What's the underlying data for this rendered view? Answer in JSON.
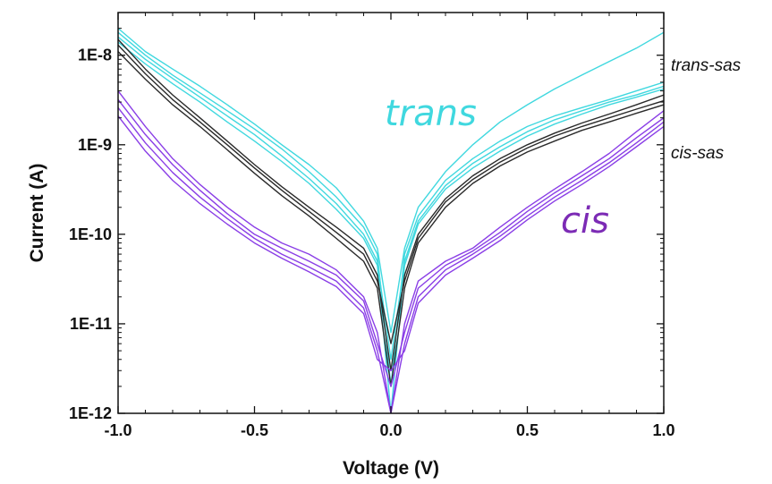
{
  "chart_data": {
    "type": "line",
    "xlabel": "Voltage (V)",
    "ylabel": "Current (A)",
    "xlim": [
      -1.0,
      1.0
    ],
    "ylim": [
      1e-12,
      3e-08
    ],
    "yscale": "log",
    "grid": false,
    "x_ticks": [
      -1.0,
      -0.5,
      0.0,
      0.5,
      1.0
    ],
    "x_tick_labels": [
      "-1.0",
      "-0.5",
      "0.0",
      "0.5",
      "1.0"
    ],
    "y_ticks": [
      1e-12,
      1e-11,
      1e-10,
      1e-09,
      1e-08
    ],
    "y_tick_labels": [
      "1E-12",
      "1E-11",
      "1E-10",
      "1E-9",
      "1E-8"
    ],
    "colors": {
      "trans": "#40d8df",
      "trans_sas": "#2a2a2a",
      "cis": "#8a3ee6",
      "cis_label": "#7c2bb5"
    },
    "annotations": [
      {
        "text": "trans",
        "group": "trans"
      },
      {
        "text": "cis",
        "group": "cis"
      },
      {
        "text": "trans-sas",
        "group": "label"
      },
      {
        "text": "cis-sas",
        "group": "label"
      }
    ],
    "series": [
      {
        "group": "trans",
        "x": [
          -1.0,
          -0.9,
          -0.8,
          -0.7,
          -0.6,
          -0.5,
          -0.4,
          -0.3,
          -0.2,
          -0.1,
          -0.05,
          0.0,
          0.05,
          0.1,
          0.2,
          0.3,
          0.4,
          0.5,
          0.6,
          0.7,
          0.8,
          0.9,
          1.0
        ],
        "y": [
          2e-08,
          1.1e-08,
          7e-09,
          4.5e-09,
          2.8e-09,
          1.7e-09,
          1e-09,
          6e-10,
          3.3e-10,
          1.4e-10,
          7e-11,
          8e-12,
          7e-11,
          2e-10,
          5e-10,
          1e-09,
          1.8e-09,
          2.8e-09,
          4.2e-09,
          6e-09,
          8.5e-09,
          1.2e-08,
          1.8e-08
        ]
      },
      {
        "group": "trans",
        "x": [
          -1.0,
          -0.9,
          -0.8,
          -0.7,
          -0.6,
          -0.5,
          -0.4,
          -0.3,
          -0.2,
          -0.1,
          -0.05,
          0.0,
          0.05,
          0.1,
          0.2,
          0.3,
          0.4,
          0.5,
          0.6,
          0.7,
          0.8,
          0.9,
          1.0
        ],
        "y": [
          1.8e-08,
          1e-08,
          6e-09,
          3.8e-09,
          2.4e-09,
          1.5e-09,
          9e-10,
          5e-10,
          2.6e-10,
          1.2e-10,
          6e-11,
          2e-12,
          6e-11,
          1.6e-10,
          4e-10,
          7e-10,
          1.1e-09,
          1.6e-09,
          2.1e-09,
          2.6e-09,
          3.2e-09,
          4e-09,
          5e-09
        ]
      },
      {
        "group": "trans",
        "x": [
          -1.0,
          -0.9,
          -0.8,
          -0.7,
          -0.6,
          -0.5,
          -0.4,
          -0.3,
          -0.2,
          -0.1,
          -0.05,
          0.0,
          0.05,
          0.1,
          0.2,
          0.3,
          0.4,
          0.5,
          0.6,
          0.7,
          0.8,
          0.9,
          1.0
        ],
        "y": [
          1.6e-08,
          9e-09,
          5.5e-09,
          3.4e-09,
          2.1e-09,
          1.3e-09,
          7.5e-10,
          4.2e-10,
          2.2e-10,
          1e-10,
          5e-11,
          4e-12,
          5e-11,
          1.4e-10,
          3.5e-10,
          6.2e-10,
          9.5e-10,
          1.4e-09,
          1.9e-09,
          2.4e-09,
          3e-09,
          3.6e-09,
          4.5e-09
        ]
      },
      {
        "group": "trans",
        "x": [
          -1.0,
          -0.9,
          -0.8,
          -0.7,
          -0.6,
          -0.5,
          -0.4,
          -0.3,
          -0.2,
          -0.1,
          -0.05,
          0.0,
          0.05,
          0.1,
          0.2,
          0.3,
          0.4,
          0.5,
          0.6,
          0.7,
          0.8,
          0.9,
          1.0
        ],
        "y": [
          1.4e-08,
          8e-09,
          4.8e-09,
          3e-09,
          1.8e-09,
          1.1e-09,
          6.5e-10,
          3.7e-10,
          1.9e-10,
          9e-11,
          4.5e-11,
          1e-12,
          4.5e-11,
          1.3e-10,
          3.2e-10,
          5.5e-10,
          8.5e-10,
          1.25e-09,
          1.7e-09,
          2.2e-09,
          2.8e-09,
          3.4e-09,
          4.2e-09
        ]
      },
      {
        "group": "trans-sas",
        "x": [
          -1.0,
          -0.9,
          -0.8,
          -0.7,
          -0.6,
          -0.5,
          -0.4,
          -0.3,
          -0.2,
          -0.1,
          -0.05,
          0.0,
          0.05,
          0.1,
          0.2,
          0.3,
          0.4,
          0.5,
          0.6,
          0.7,
          0.8,
          0.9,
          1.0
        ],
        "y": [
          1.5e-08,
          7e-09,
          3.6e-09,
          2e-09,
          1.1e-09,
          6e-10,
          3.4e-10,
          2e-10,
          1.2e-10,
          7e-11,
          3.5e-11,
          3e-12,
          3.5e-11,
          1e-10,
          2.5e-10,
          4.5e-10,
          7e-10,
          1e-09,
          1.35e-09,
          1.75e-09,
          2.2e-09,
          2.8e-09,
          3.6e-09
        ]
      },
      {
        "group": "trans-sas",
        "x": [
          -1.0,
          -0.9,
          -0.8,
          -0.7,
          -0.6,
          -0.5,
          -0.4,
          -0.3,
          -0.2,
          -0.1,
          -0.05,
          0.0,
          0.05,
          0.1,
          0.2,
          0.3,
          0.4,
          0.5,
          0.6,
          0.7,
          0.8,
          0.9,
          1.0
        ],
        "y": [
          1.3e-08,
          6.2e-09,
          3.2e-09,
          1.8e-09,
          1e-09,
          5.5e-10,
          3.1e-10,
          1.8e-10,
          1.05e-10,
          6e-11,
          3e-11,
          6e-12,
          3e-11,
          9e-11,
          2.3e-10,
          4.1e-10,
          6.4e-10,
          9.2e-10,
          1.25e-09,
          1.6e-09,
          2e-09,
          2.5e-09,
          3.1e-09
        ]
      },
      {
        "group": "trans-sas",
        "x": [
          -1.0,
          -0.9,
          -0.8,
          -0.7,
          -0.6,
          -0.5,
          -0.4,
          -0.3,
          -0.2,
          -0.1,
          -0.05,
          0.0,
          0.05,
          0.1,
          0.2,
          0.3,
          0.4,
          0.5,
          0.6,
          0.7,
          0.8,
          0.9,
          1.0
        ],
        "y": [
          1.1e-08,
          5.4e-09,
          2.8e-09,
          1.6e-09,
          8.8e-10,
          4.8e-10,
          2.7e-10,
          1.6e-10,
          9e-11,
          5e-11,
          2.5e-11,
          2e-12,
          2.5e-11,
          8e-11,
          2e-10,
          3.7e-10,
          5.8e-10,
          8.3e-10,
          1.1e-09,
          1.45e-09,
          1.8e-09,
          2.25e-09,
          2.8e-09
        ]
      },
      {
        "group": "cis",
        "x": [
          -1.0,
          -0.9,
          -0.8,
          -0.7,
          -0.6,
          -0.5,
          -0.4,
          -0.3,
          -0.2,
          -0.1,
          -0.05,
          0.0,
          0.05,
          0.1,
          0.2,
          0.3,
          0.4,
          0.5,
          0.6,
          0.7,
          0.8,
          0.9,
          1.0
        ],
        "y": [
          4e-09,
          1.6e-09,
          7e-10,
          3.6e-10,
          2e-10,
          1.2e-10,
          8e-11,
          6e-11,
          4e-11,
          2e-11,
          8e-12,
          1e-12,
          1e-11,
          3e-11,
          5e-11,
          7e-11,
          1.2e-10,
          2e-10,
          3.2e-10,
          5e-10,
          8e-10,
          1.4e-09,
          2.4e-09
        ]
      },
      {
        "group": "cis",
        "x": [
          -1.0,
          -0.9,
          -0.8,
          -0.7,
          -0.6,
          -0.5,
          -0.4,
          -0.3,
          -0.2,
          -0.1,
          -0.05,
          0.0,
          0.05,
          0.1,
          0.2,
          0.3,
          0.4,
          0.5,
          0.6,
          0.7,
          0.8,
          0.9,
          1.0
        ],
        "y": [
          3.2e-09,
          1.3e-09,
          6e-10,
          3.1e-10,
          1.7e-10,
          1e-10,
          7e-11,
          5e-11,
          3.5e-11,
          1.8e-11,
          6e-12,
          2e-12,
          8e-12,
          2.5e-11,
          4.5e-11,
          6.5e-11,
          1.05e-10,
          1.8e-10,
          2.9e-10,
          4.5e-10,
          7e-10,
          1.2e-09,
          2e-09
        ]
      },
      {
        "group": "cis",
        "x": [
          -1.0,
          -0.9,
          -0.8,
          -0.7,
          -0.6,
          -0.5,
          -0.4,
          -0.3,
          -0.2,
          -0.1,
          -0.05,
          0.0,
          0.05,
          0.1,
          0.2,
          0.3,
          0.4,
          0.5,
          0.6,
          0.7,
          0.8,
          0.9,
          1.0
        ],
        "y": [
          2.6e-09,
          1.05e-09,
          4.9e-10,
          2.6e-10,
          1.5e-10,
          9e-11,
          6e-11,
          4.3e-11,
          3e-11,
          1.5e-11,
          5e-12,
          1e-12,
          6e-12,
          2e-11,
          4e-11,
          6e-11,
          9.5e-11,
          1.6e-10,
          2.6e-10,
          4e-10,
          6.3e-10,
          1.05e-09,
          1.8e-09
        ]
      },
      {
        "group": "cis",
        "x": [
          -1.0,
          -0.9,
          -0.8,
          -0.7,
          -0.6,
          -0.5,
          -0.4,
          -0.3,
          -0.2,
          -0.1,
          -0.05,
          0.0,
          0.05,
          0.1,
          0.2,
          0.3,
          0.4,
          0.5,
          0.6,
          0.7,
          0.8,
          0.9,
          1.0
        ],
        "y": [
          2.1e-09,
          8.5e-10,
          4e-10,
          2.2e-10,
          1.3e-10,
          8e-11,
          5.4e-11,
          3.8e-11,
          2.6e-11,
          1.3e-11,
          4e-12,
          3e-12,
          5e-12,
          1.7e-11,
          3.5e-11,
          5.4e-11,
          8.5e-11,
          1.45e-10,
          2.35e-10,
          3.6e-10,
          5.7e-10,
          9.5e-10,
          1.6e-09
        ]
      }
    ]
  }
}
